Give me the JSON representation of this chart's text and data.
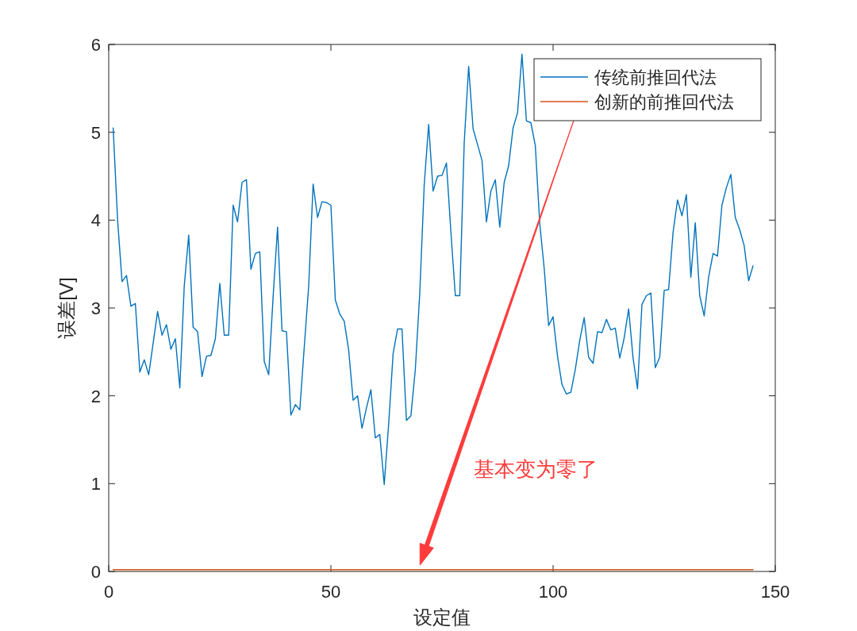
{
  "chart_data": {
    "type": "line",
    "xlabel": "设定值",
    "ylabel": "误差[V]",
    "xlim": [
      0,
      150
    ],
    "ylim": [
      0,
      6
    ],
    "xticks": [
      0,
      50,
      100,
      150
    ],
    "yticks": [
      0,
      1,
      2,
      3,
      4,
      5,
      6
    ],
    "grid": false,
    "legend": "top right",
    "marker": "none",
    "line_style": "solid",
    "x": [
      1,
      2,
      3,
      4,
      5,
      6,
      7,
      8,
      9,
      11,
      12,
      13,
      14,
      15,
      16,
      17,
      18,
      19,
      20,
      21,
      22,
      23,
      24,
      25,
      26,
      27,
      28,
      29,
      30,
      31,
      32,
      33,
      34,
      35,
      36,
      37,
      38,
      39,
      40,
      41,
      42,
      43,
      44,
      45,
      46,
      47,
      48,
      49,
      50,
      51,
      52,
      53,
      54,
      55,
      56,
      57,
      58,
      59,
      60,
      61,
      62,
      63,
      64,
      65,
      66,
      67,
      68,
      69,
      70,
      71,
      72,
      73,
      74,
      75,
      76,
      77,
      78,
      79,
      80,
      81,
      82,
      83,
      84,
      85,
      86,
      87,
      88,
      89,
      90,
      91,
      92,
      93,
      94,
      95,
      96,
      97,
      98,
      99,
      100,
      101,
      102,
      103,
      104,
      105,
      106,
      107,
      108,
      109,
      110,
      111,
      112,
      113,
      114,
      115,
      116,
      117,
      118,
      119,
      120,
      121,
      122,
      123,
      124,
      125,
      126,
      127,
      128,
      129,
      130,
      131,
      132,
      133,
      134,
      135,
      136,
      137,
      138,
      139,
      140,
      141,
      142,
      143,
      144,
      145
    ],
    "series": [
      {
        "name": "传统前推回代法",
        "color": "#0072bd",
        "values": [
          5.05,
          4.0,
          3.3,
          3.37,
          3.02,
          3.05,
          2.27,
          2.41,
          2.24,
          2.96,
          2.69,
          2.81,
          2.53,
          2.65,
          2.09,
          3.25,
          3.83,
          2.78,
          2.73,
          2.22,
          2.45,
          2.46,
          2.65,
          3.28,
          2.69,
          2.69,
          4.17,
          3.98,
          4.43,
          4.46,
          3.44,
          3.62,
          3.64,
          2.39,
          2.24,
          3.13,
          3.92,
          2.74,
          2.73,
          1.78,
          1.9,
          1.84,
          2.55,
          3.25,
          4.41,
          4.03,
          4.21,
          4.2,
          4.17,
          3.09,
          2.93,
          2.85,
          2.52,
          1.95,
          2.0,
          1.63,
          1.86,
          2.07,
          1.52,
          1.56,
          0.99,
          1.68,
          2.48,
          2.76,
          2.76,
          1.72,
          1.77,
          2.3,
          3.17,
          4.4,
          5.09,
          4.33,
          4.5,
          4.51,
          4.65,
          3.87,
          3.14,
          3.14,
          4.88,
          5.75,
          5.04,
          4.86,
          4.68,
          3.98,
          4.33,
          4.46,
          3.92,
          4.43,
          4.62,
          5.05,
          5.22,
          5.89,
          5.13,
          5.11,
          4.85,
          3.96,
          3.45,
          2.8,
          2.9,
          2.45,
          2.13,
          2.02,
          2.04,
          2.3,
          2.63,
          2.89,
          2.44,
          2.37,
          2.73,
          2.72,
          2.87,
          2.75,
          2.77,
          2.43,
          2.66,
          2.99,
          2.43,
          2.08,
          3.04,
          3.14,
          3.17,
          2.32,
          2.44,
          3.2,
          3.21,
          3.86,
          4.23,
          4.05,
          4.29,
          3.35,
          3.97,
          3.14,
          2.91,
          3.35,
          3.62,
          3.59,
          4.17,
          4.37,
          4.52,
          4.03,
          3.89,
          3.71,
          3.31,
          3.48
        ]
      },
      {
        "name": "创新的前推回代法",
        "color": "#d95319",
        "x": [
          1,
          145
        ],
        "values": [
          0.02,
          0.02
        ]
      }
    ],
    "annotations": [
      "基本变为零了"
    ]
  }
}
